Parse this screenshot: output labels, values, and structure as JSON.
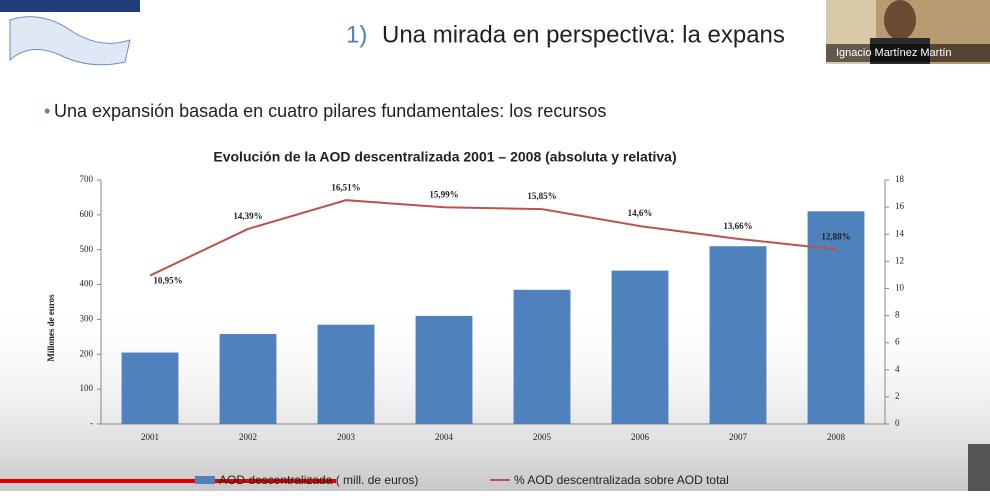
{
  "slide": {
    "number": "1)",
    "heading": "Una mirada en perspectiva: la expans",
    "bullet": "Una expansión basada en cuatro pilares fundamentales: los recursos"
  },
  "participant": {
    "name": "Ignacio Martínez Martín"
  },
  "chart_data": {
    "type": "bar",
    "title": "Evolución de la AOD descentralizada 2001 – 2008 (absoluta y relativa)",
    "y_label": "Millones de euros",
    "categories": [
      "2001",
      "2002",
      "2003",
      "2004",
      "2005",
      "2006",
      "2007",
      "2008"
    ],
    "series": [
      {
        "name": "AOD descentralizada ( mill. de euros)",
        "type": "bar",
        "color": "#4f81bd",
        "values": [
          205,
          258,
          285,
          310,
          385,
          440,
          510,
          610
        ]
      },
      {
        "name": "% AOD descentralizada sobre AOD total",
        "type": "line",
        "axis": "y2",
        "color": "#c0504d",
        "values": [
          10.95,
          14.39,
          16.51,
          15.99,
          15.85,
          14.6,
          13.66,
          12.88
        ],
        "value_labels": [
          "10,95%",
          "14,39%",
          "16,51%",
          "15,99%",
          "15,85%",
          "14,6%",
          "13,66%",
          "12,88%"
        ]
      }
    ],
    "ylim": [
      0,
      700
    ],
    "yticks": [
      {
        "value": 0,
        "label": "-"
      },
      100,
      200,
      300,
      400,
      500,
      600,
      700
    ],
    "y2lim": [
      0,
      18
    ],
    "y2ticks": [
      0,
      2,
      4,
      6,
      8,
      10,
      12,
      14,
      16,
      18
    ]
  }
}
